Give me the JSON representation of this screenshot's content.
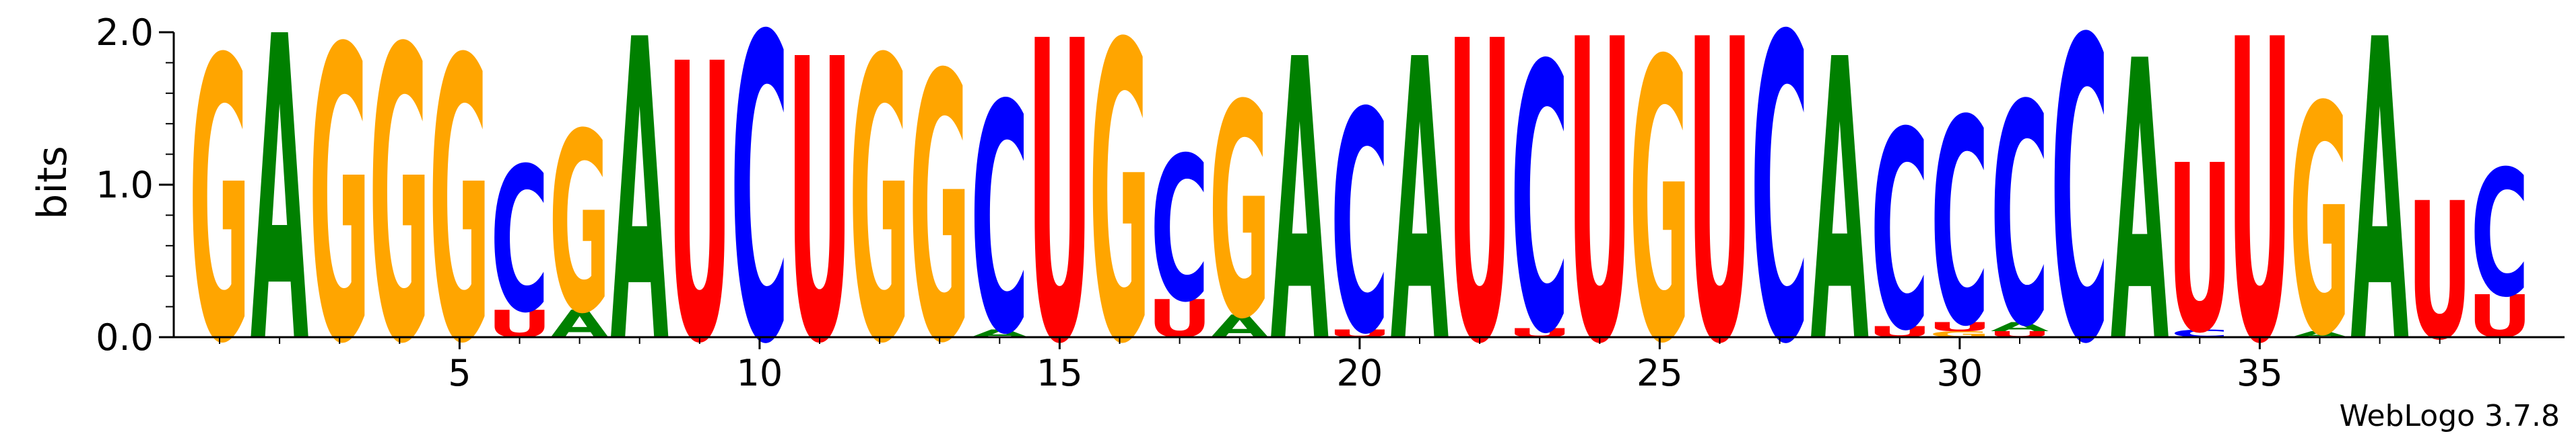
{
  "chart_data": {
    "type": "sequence-logo",
    "ylabel": "bits",
    "ylim": [
      0,
      2.0
    ],
    "y_ticks_labeled": [
      "0.0",
      "1.0",
      "2.0"
    ],
    "y_minor_step": 0.2,
    "x_ticks_labeled": [
      "5",
      "10",
      "15",
      "20",
      "25",
      "30",
      "35"
    ],
    "x_range": [
      1,
      39
    ],
    "colors": {
      "A": "#008000",
      "C": "#0000ff",
      "G": "#ffa500",
      "U": "#ff0000"
    },
    "positions": [
      [
        [
          "G",
          1.85
        ]
      ],
      [
        [
          "A",
          2.0
        ]
      ],
      [
        [
          "G",
          1.92
        ]
      ],
      [
        [
          "G",
          1.92
        ]
      ],
      [
        [
          "G",
          1.85
        ]
      ],
      [
        [
          "U",
          0.18
        ],
        [
          "C",
          0.95
        ]
      ],
      [
        [
          "A",
          0.18
        ],
        [
          "G",
          1.18
        ]
      ],
      [
        [
          "A",
          1.98
        ]
      ],
      [
        [
          "U",
          1.82
        ]
      ],
      [
        [
          "C",
          2.0
        ]
      ],
      [
        [
          "U",
          1.85
        ]
      ],
      [
        [
          "G",
          1.85
        ]
      ],
      [
        [
          "G",
          1.75
        ]
      ],
      [
        [
          "A",
          0.05
        ],
        [
          "C",
          1.5
        ]
      ],
      [
        [
          "U",
          1.97
        ]
      ],
      [
        [
          "G",
          1.95
        ]
      ],
      [
        [
          "U",
          0.25
        ],
        [
          "C",
          0.95
        ]
      ],
      [
        [
          "A",
          0.15
        ],
        [
          "G",
          1.4
        ]
      ],
      [
        [
          "A",
          1.85
        ]
      ],
      [
        [
          "U",
          0.05
        ],
        [
          "C",
          1.45
        ]
      ],
      [
        [
          "A",
          1.85
        ]
      ],
      [
        [
          "U",
          1.97
        ]
      ],
      [
        [
          "U",
          0.06
        ],
        [
          "C",
          1.75
        ]
      ],
      [
        [
          "U",
          1.98
        ]
      ],
      [
        [
          "G",
          1.84
        ]
      ],
      [
        [
          "U",
          1.98
        ]
      ],
      [
        [
          "C",
          2.0
        ]
      ],
      [
        [
          "A",
          1.85
        ]
      ],
      [
        [
          "U",
          0.07
        ],
        [
          "C",
          1.3
        ]
      ],
      [
        [
          "G",
          0.04
        ],
        [
          "U",
          0.06
        ],
        [
          "C",
          1.35
        ]
      ],
      [
        [
          "U",
          0.04
        ],
        [
          "A",
          0.06
        ],
        [
          "C",
          1.45
        ]
      ],
      [
        [
          "C",
          1.98
        ]
      ],
      [
        [
          "A",
          1.84
        ]
      ],
      [
        [
          "C",
          0.05
        ],
        [
          "U",
          1.1
        ]
      ],
      [
        [
          "U",
          1.98
        ]
      ],
      [
        [
          "A",
          0.04
        ],
        [
          "G",
          1.5
        ]
      ],
      [
        [
          "A",
          1.98
        ]
      ],
      [
        [
          "U",
          0.9
        ]
      ],
      [
        [
          "U",
          0.28
        ],
        [
          "C",
          0.83
        ]
      ]
    ]
  },
  "footer": {
    "text": "WebLogo 3.7.8"
  }
}
